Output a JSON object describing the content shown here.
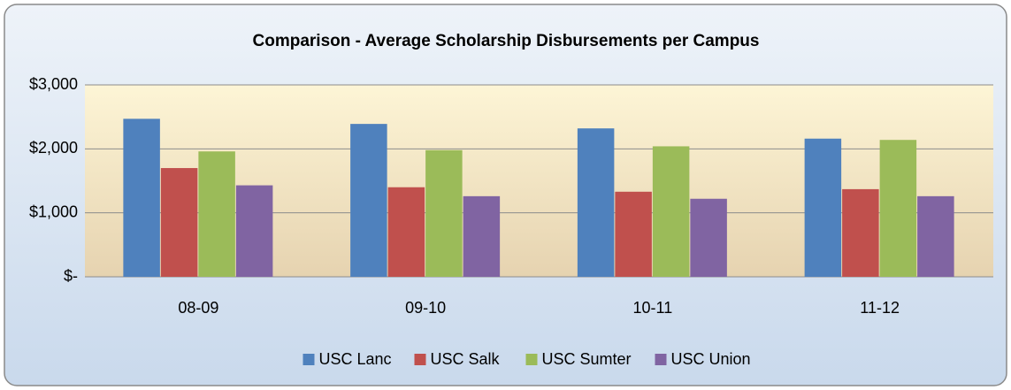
{
  "chart_data": {
    "type": "bar",
    "title": "Comparison - Average Scholarship Disbursements per Campus",
    "categories": [
      "08-09",
      "09-10",
      "10-11",
      "11-12"
    ],
    "series": [
      {
        "name": "USC Lanc",
        "color": "#4f81bd",
        "values": [
          2470,
          2390,
          2320,
          2160
        ]
      },
      {
        "name": "USC Salk",
        "color": "#c0504d",
        "values": [
          1700,
          1400,
          1330,
          1370
        ]
      },
      {
        "name": "USC Sumter",
        "color": "#9bbb59",
        "values": [
          1960,
          1980,
          2040,
          2140
        ]
      },
      {
        "name": "USC Union",
        "color": "#8064a2",
        "values": [
          1430,
          1260,
          1220,
          1260
        ]
      }
    ],
    "ylim": [
      0,
      3000
    ],
    "yticks": [
      {
        "value": 0,
        "label": "$-"
      },
      {
        "value": 1000,
        "label": "$1,000"
      },
      {
        "value": 2000,
        "label": "$2,000"
      },
      {
        "value": 3000,
        "label": "$3,000"
      }
    ],
    "grid": true,
    "legend": "bottom"
  }
}
